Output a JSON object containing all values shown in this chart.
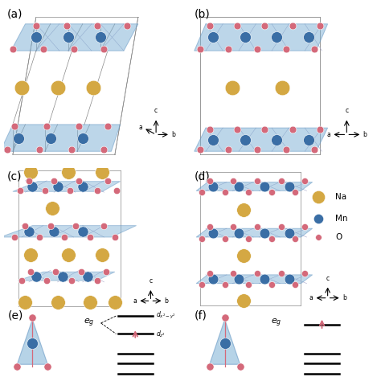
{
  "colors": {
    "Na": "#D4A843",
    "Mn": "#3A6EA5",
    "O": "#D4697A",
    "oct_face": "#7BAFD4",
    "oct_edge": "#5A8FBF",
    "bg": "#FFFFFF",
    "line": "#888888"
  },
  "panel_labels": [
    "(a)",
    "(b)",
    "(c)",
    "(d)",
    "(e)",
    "(f)"
  ],
  "label_fontsize": 10,
  "atom_sizes": {
    "Na": 180,
    "Mn": 100,
    "O": 40
  }
}
